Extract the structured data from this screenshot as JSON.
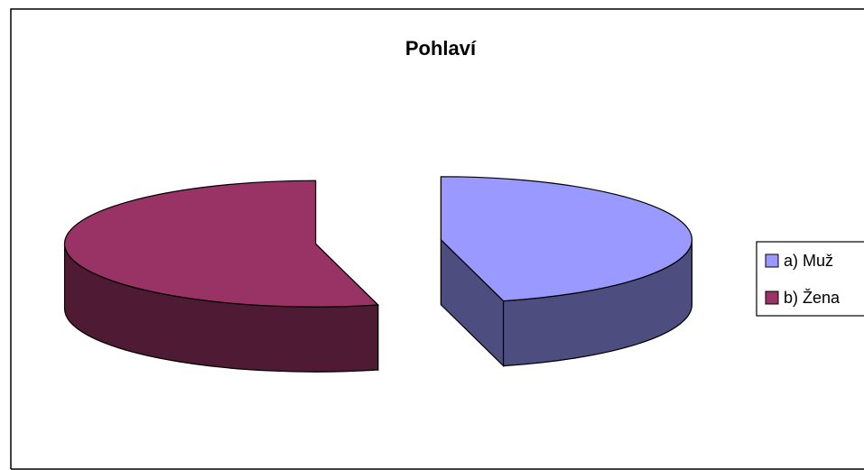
{
  "chart_data": {
    "type": "pie3d",
    "title": "Pohlaví",
    "categories": [
      "a) Muž",
      "b) Žena"
    ],
    "values": [
      46,
      54
    ],
    "colors": [
      "#9999ff",
      "#993366"
    ],
    "side_colors": [
      "#4d4d80",
      "#4f1a33"
    ],
    "legend": "right"
  }
}
